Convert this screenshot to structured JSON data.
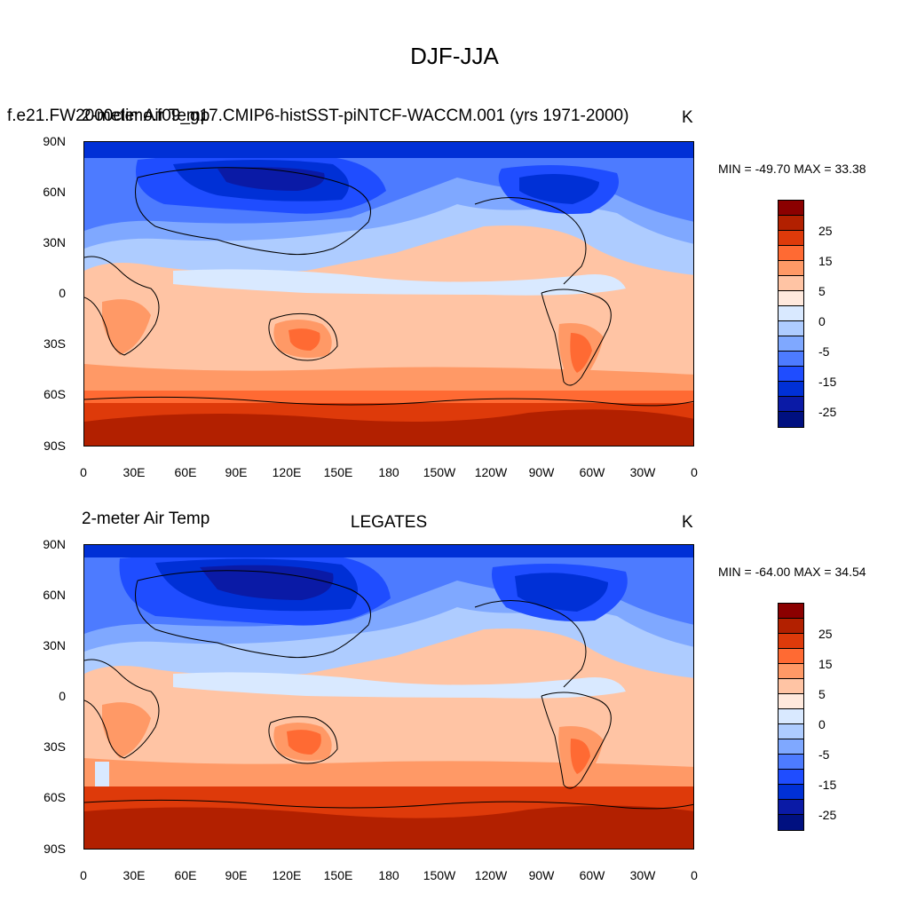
{
  "figure": {
    "title": "DJF-JJA"
  },
  "panels": [
    {
      "case_title": "f.e21.FW2000climo.f09_g17.CMIP6-histSST-piNTCF-WACCM.001 (yrs 1971-2000)",
      "left_title": "2-meter Air Temp",
      "center_title": "",
      "units": "K",
      "stats": "MIN = -49.70 MAX =  33.38"
    },
    {
      "case_title": "",
      "left_title": "2-meter Air Temp",
      "center_title": "LEGATES",
      "units": "K",
      "stats": "MIN = -64.00 MAX =  34.54"
    }
  ],
  "axes": {
    "lat_labels": [
      "90N",
      "60N",
      "30N",
      "0",
      "30S",
      "60S",
      "90S"
    ],
    "lon_labels": [
      "0",
      "30E",
      "60E",
      "90E",
      "120E",
      "150E",
      "180",
      "150W",
      "120W",
      "90W",
      "60W",
      "30W",
      "0"
    ]
  },
  "colorbar": {
    "colors": [
      "#8b0000",
      "#b22000",
      "#de3a0a",
      "#ff6a33",
      "#ff9966",
      "#ffc4a4",
      "#ffe9dd",
      "#d9e9ff",
      "#aeccff",
      "#7fa8ff",
      "#4d7bff",
      "#1f4dff",
      "#0030d6",
      "#0a1aa6",
      "#001080"
    ],
    "labels": [
      "25",
      "15",
      "5",
      "0",
      "-5",
      "-15",
      "-25"
    ]
  }
}
